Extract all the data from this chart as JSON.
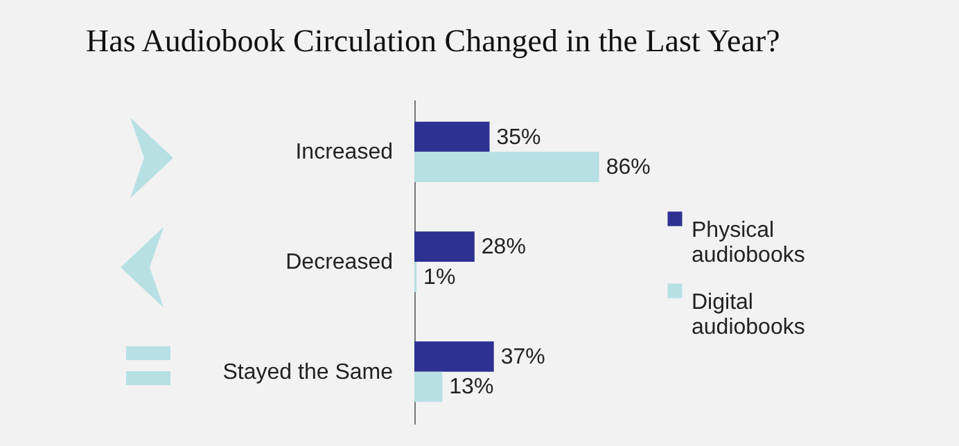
{
  "chart_data": {
    "type": "bar",
    "orientation": "horizontal",
    "title": "Has Audiobook Circulation Changed in the Last Year?",
    "categories": [
      "Increased",
      "Decreased",
      "Stayed the Same"
    ],
    "series": [
      {
        "name": "Physical audiobooks",
        "color": "#2e3192",
        "values": [
          35,
          28,
          37
        ],
        "value_labels": [
          "35%",
          "28%",
          "37%"
        ]
      },
      {
        "name": "Digital audiobooks",
        "color": "#b7e0e3",
        "values": [
          86,
          1,
          13
        ],
        "value_labels": [
          "86%",
          "1%",
          "13%"
        ]
      }
    ],
    "legend": "right"
  }
}
